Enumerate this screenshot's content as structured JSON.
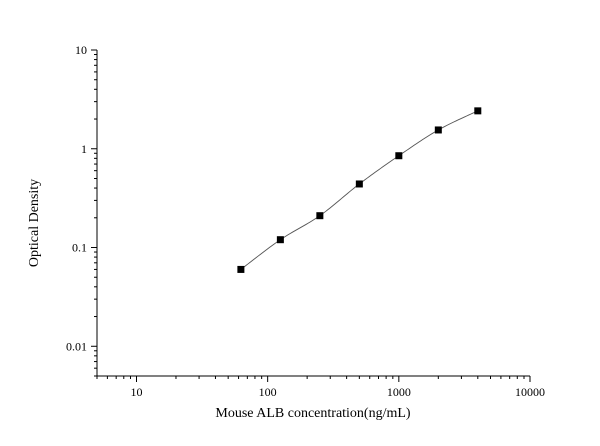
{
  "chart_data": {
    "type": "scatter",
    "title": "",
    "xlabel": "Mouse ALB concentration(ng/mL)",
    "ylabel": "Optical Density",
    "x_scale": "log",
    "y_scale": "log",
    "xlim": [
      5,
      10000
    ],
    "ylim": [
      0.005,
      10
    ],
    "x_ticks": [
      {
        "value": 10,
        "label": "10"
      },
      {
        "value": 100,
        "label": "100"
      },
      {
        "value": 1000,
        "label": "1000"
      },
      {
        "value": 10000,
        "label": "10000"
      }
    ],
    "y_ticks": [
      {
        "value": 0.01,
        "label": "0.01"
      },
      {
        "value": 0.1,
        "label": "0.1"
      },
      {
        "value": 1,
        "label": "1"
      },
      {
        "value": 10,
        "label": "10"
      }
    ],
    "grid": false,
    "legend": "none",
    "series": [
      {
        "marker": "square",
        "fit_line": true,
        "x": [
          62.5,
          125,
          250,
          500,
          1000,
          2000,
          4000
        ],
        "y": [
          0.06,
          0.12,
          0.21,
          0.44,
          0.85,
          1.55,
          2.42
        ]
      }
    ],
    "marker_color": "#000000",
    "line_color": "#555555"
  }
}
